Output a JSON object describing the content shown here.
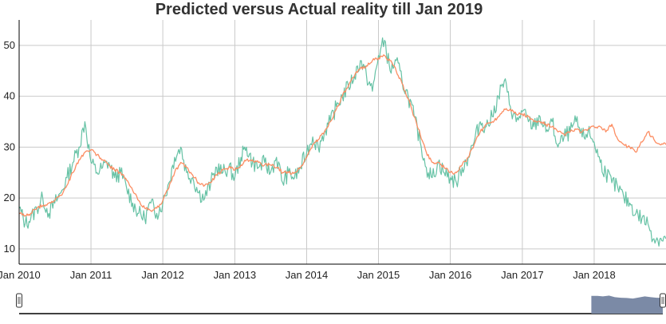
{
  "chart_data": {
    "type": "line",
    "title": "Predicted versus Actual reality till Jan 2019",
    "xlabel": "",
    "ylabel": "",
    "x_range": [
      "2010-01-01",
      "2019-01-01"
    ],
    "ylim": [
      7,
      55
    ],
    "y_ticks": [
      10,
      20,
      30,
      40,
      50
    ],
    "x_ticks": [
      {
        "date": "2010-01-01",
        "label": "Jan 2010"
      },
      {
        "date": "2011-01-01",
        "label": "Jan 2011"
      },
      {
        "date": "2012-01-01",
        "label": "Jan 2012"
      },
      {
        "date": "2013-01-01",
        "label": "Jan 2013"
      },
      {
        "date": "2014-01-01",
        "label": "Jan 2014"
      },
      {
        "date": "2015-01-01",
        "label": "Jan 2015"
      },
      {
        "date": "2016-01-01",
        "label": "Jan 2016"
      },
      {
        "date": "2017-01-01",
        "label": "Jan 2017"
      },
      {
        "date": "2018-01-01",
        "label": "Jan 2018"
      }
    ],
    "grid": true,
    "legend": "none",
    "series": [
      {
        "color": "#66c2a5",
        "points": [
          [
            "2010-01-01",
            18
          ],
          [
            "2010-02-01",
            15
          ],
          [
            "2010-03-01",
            16
          ],
          [
            "2010-04-01",
            18
          ],
          [
            "2010-05-01",
            20
          ],
          [
            "2010-06-01",
            17
          ],
          [
            "2010-07-01",
            19
          ],
          [
            "2010-08-01",
            21
          ],
          [
            "2010-09-01",
            24
          ],
          [
            "2010-10-01",
            27
          ],
          [
            "2010-11-01",
            30
          ],
          [
            "2010-12-01",
            35
          ],
          [
            "2011-01-01",
            27
          ],
          [
            "2011-02-01",
            25
          ],
          [
            "2011-03-01",
            26
          ],
          [
            "2011-04-01",
            27
          ],
          [
            "2011-05-01",
            24
          ],
          [
            "2011-06-01",
            25
          ],
          [
            "2011-07-01",
            22
          ],
          [
            "2011-08-01",
            19
          ],
          [
            "2011-09-01",
            17
          ],
          [
            "2011-10-01",
            16
          ],
          [
            "2011-11-01",
            19
          ],
          [
            "2011-12-01",
            17
          ],
          [
            "2012-01-01",
            19
          ],
          [
            "2012-02-01",
            23
          ],
          [
            "2012-03-01",
            28
          ],
          [
            "2012-04-01",
            30
          ],
          [
            "2012-05-01",
            25
          ],
          [
            "2012-06-01",
            24
          ],
          [
            "2012-07-01",
            21
          ],
          [
            "2012-08-01",
            20
          ],
          [
            "2012-09-01",
            23
          ],
          [
            "2012-10-01",
            26
          ],
          [
            "2012-11-01",
            25
          ],
          [
            "2012-12-01",
            26
          ],
          [
            "2013-01-01",
            24
          ],
          [
            "2013-02-01",
            28
          ],
          [
            "2013-03-01",
            30
          ],
          [
            "2013-04-01",
            27
          ],
          [
            "2013-05-01",
            26
          ],
          [
            "2013-06-01",
            27
          ],
          [
            "2013-07-01",
            25
          ],
          [
            "2013-08-01",
            28
          ],
          [
            "2013-09-01",
            23
          ],
          [
            "2013-10-01",
            25
          ],
          [
            "2013-11-01",
            24
          ],
          [
            "2013-12-01",
            26
          ],
          [
            "2014-01-01",
            29
          ],
          [
            "2014-02-01",
            32
          ],
          [
            "2014-03-01",
            30
          ],
          [
            "2014-04-01",
            33
          ],
          [
            "2014-05-01",
            35
          ],
          [
            "2014-06-01",
            38
          ],
          [
            "2014-07-01",
            40
          ],
          [
            "2014-08-01",
            42
          ],
          [
            "2014-09-01",
            44
          ],
          [
            "2014-10-01",
            47
          ],
          [
            "2014-11-01",
            44
          ],
          [
            "2014-12-01",
            41
          ],
          [
            "2015-01-01",
            48
          ],
          [
            "2015-02-01",
            51
          ],
          [
            "2015-03-01",
            45
          ],
          [
            "2015-04-01",
            47
          ],
          [
            "2015-05-01",
            43
          ],
          [
            "2015-06-01",
            40
          ],
          [
            "2015-07-01",
            36
          ],
          [
            "2015-08-01",
            31
          ],
          [
            "2015-09-01",
            26
          ],
          [
            "2015-10-01",
            24
          ],
          [
            "2015-11-01",
            27
          ],
          [
            "2015-12-01",
            25
          ],
          [
            "2016-01-01",
            24
          ],
          [
            "2016-02-01",
            23
          ],
          [
            "2016-03-01",
            26
          ],
          [
            "2016-04-01",
            28
          ],
          [
            "2016-05-01",
            31
          ],
          [
            "2016-06-01",
            35
          ],
          [
            "2016-07-01",
            34
          ],
          [
            "2016-08-01",
            36
          ],
          [
            "2016-09-01",
            40
          ],
          [
            "2016-10-01",
            43
          ],
          [
            "2016-11-01",
            38
          ],
          [
            "2016-12-01",
            35
          ],
          [
            "2017-01-01",
            37
          ],
          [
            "2017-02-01",
            35
          ],
          [
            "2017-03-01",
            34
          ],
          [
            "2017-04-01",
            36
          ],
          [
            "2017-05-01",
            33
          ],
          [
            "2017-06-01",
            35
          ],
          [
            "2017-07-01",
            30
          ],
          [
            "2017-08-01",
            32
          ],
          [
            "2017-09-01",
            33
          ],
          [
            "2017-10-01",
            35
          ],
          [
            "2017-11-01",
            32
          ],
          [
            "2017-12-01",
            33
          ],
          [
            "2018-01-01",
            31
          ],
          [
            "2018-02-01",
            27
          ],
          [
            "2018-03-01",
            25
          ],
          [
            "2018-04-01",
            23
          ],
          [
            "2018-05-01",
            22
          ],
          [
            "2018-06-01",
            20
          ],
          [
            "2018-07-01",
            19
          ],
          [
            "2018-08-01",
            17
          ],
          [
            "2018-09-01",
            16
          ],
          [
            "2018-10-01",
            15
          ],
          [
            "2018-11-01",
            12
          ],
          [
            "2018-12-01",
            12
          ],
          [
            "2018-12-31",
            12
          ]
        ]
      },
      {
        "color": "#fc8d62",
        "points": [
          [
            "2010-01-01",
            17
          ],
          [
            "2010-02-01",
            16.5
          ],
          [
            "2010-03-01",
            17
          ],
          [
            "2010-04-01",
            18
          ],
          [
            "2010-05-01",
            18.5
          ],
          [
            "2010-06-01",
            19
          ],
          [
            "2010-07-01",
            19.5
          ],
          [
            "2010-08-01",
            20.5
          ],
          [
            "2010-09-01",
            22.5
          ],
          [
            "2010-10-01",
            25
          ],
          [
            "2010-11-01",
            27.5
          ],
          [
            "2010-12-01",
            29
          ],
          [
            "2011-01-01",
            29.5
          ],
          [
            "2011-02-01",
            28.5
          ],
          [
            "2011-03-01",
            27.5
          ],
          [
            "2011-04-01",
            26.5
          ],
          [
            "2011-05-01",
            25.5
          ],
          [
            "2011-06-01",
            25
          ],
          [
            "2011-07-01",
            23.5
          ],
          [
            "2011-08-01",
            21.5
          ],
          [
            "2011-09-01",
            19.5
          ],
          [
            "2011-10-01",
            18
          ],
          [
            "2011-11-01",
            17.5
          ],
          [
            "2011-12-01",
            18
          ],
          [
            "2012-01-01",
            19.5
          ],
          [
            "2012-02-01",
            22
          ],
          [
            "2012-03-01",
            25
          ],
          [
            "2012-04-01",
            27
          ],
          [
            "2012-05-01",
            26
          ],
          [
            "2012-06-01",
            24.5
          ],
          [
            "2012-07-01",
            23
          ],
          [
            "2012-08-01",
            22.5
          ],
          [
            "2012-09-01",
            23
          ],
          [
            "2012-10-01",
            24.5
          ],
          [
            "2012-11-01",
            25.5
          ],
          [
            "2012-12-01",
            26
          ],
          [
            "2013-01-01",
            25.5
          ],
          [
            "2013-02-01",
            26.5
          ],
          [
            "2013-03-01",
            27.5
          ],
          [
            "2013-04-01",
            27.5
          ],
          [
            "2013-05-01",
            27
          ],
          [
            "2013-06-01",
            26.5
          ],
          [
            "2013-07-01",
            26.5
          ],
          [
            "2013-08-01",
            26
          ],
          [
            "2013-09-01",
            25
          ],
          [
            "2013-10-01",
            25
          ],
          [
            "2013-11-01",
            25
          ],
          [
            "2013-12-01",
            26
          ],
          [
            "2014-01-01",
            28
          ],
          [
            "2014-02-01",
            30.5
          ],
          [
            "2014-03-01",
            31.5
          ],
          [
            "2014-04-01",
            33
          ],
          [
            "2014-05-01",
            35
          ],
          [
            "2014-06-01",
            37.5
          ],
          [
            "2014-07-01",
            40
          ],
          [
            "2014-08-01",
            42
          ],
          [
            "2014-09-01",
            44
          ],
          [
            "2014-10-01",
            45.5
          ],
          [
            "2014-11-01",
            46
          ],
          [
            "2014-12-01",
            47
          ],
          [
            "2015-01-01",
            47.5
          ],
          [
            "2015-02-01",
            48
          ],
          [
            "2015-03-01",
            47
          ],
          [
            "2015-04-01",
            45
          ],
          [
            "2015-05-01",
            42.5
          ],
          [
            "2015-06-01",
            39.5
          ],
          [
            "2015-07-01",
            36
          ],
          [
            "2015-08-01",
            32.5
          ],
          [
            "2015-09-01",
            29
          ],
          [
            "2015-10-01",
            27
          ],
          [
            "2015-11-01",
            27
          ],
          [
            "2015-12-01",
            26
          ],
          [
            "2016-01-01",
            25
          ],
          [
            "2016-02-01",
            25
          ],
          [
            "2016-03-01",
            26.5
          ],
          [
            "2016-04-01",
            28
          ],
          [
            "2016-05-01",
            30.5
          ],
          [
            "2016-06-01",
            33
          ],
          [
            "2016-07-01",
            34.5
          ],
          [
            "2016-08-01",
            35
          ],
          [
            "2016-09-01",
            36
          ],
          [
            "2016-10-01",
            37.5
          ],
          [
            "2016-11-01",
            37.5
          ],
          [
            "2016-12-01",
            36.5
          ],
          [
            "2017-01-01",
            36.5
          ],
          [
            "2017-02-01",
            36
          ],
          [
            "2017-03-01",
            35
          ],
          [
            "2017-04-01",
            35
          ],
          [
            "2017-05-01",
            34.5
          ],
          [
            "2017-06-01",
            34
          ],
          [
            "2017-07-01",
            33
          ],
          [
            "2017-08-01",
            32.5
          ],
          [
            "2017-09-01",
            33
          ],
          [
            "2017-10-01",
            33.5
          ],
          [
            "2017-11-01",
            33
          ],
          [
            "2017-12-01",
            33.5
          ],
          [
            "2018-01-01",
            34
          ],
          [
            "2018-02-01",
            34
          ],
          [
            "2018-03-01",
            33
          ],
          [
            "2018-04-01",
            34.5
          ],
          [
            "2018-05-01",
            31.5
          ],
          [
            "2018-06-01",
            30.5
          ],
          [
            "2018-07-01",
            30
          ],
          [
            "2018-08-01",
            29
          ],
          [
            "2018-09-01",
            31
          ],
          [
            "2018-10-01",
            33
          ],
          [
            "2018-11-01",
            31.5
          ],
          [
            "2018-12-01",
            30.5
          ],
          [
            "2018-12-31",
            30.5
          ]
        ]
      }
    ],
    "range_selector": {
      "start": "2010-01-01",
      "end": "2019-01-01",
      "preview_start": "2018-01-01"
    }
  },
  "colors": {
    "actual": "#66c2a5",
    "predicted": "#fc8d62",
    "preview_fill": "#7b8aa6",
    "grid": "#c9c9c9"
  }
}
